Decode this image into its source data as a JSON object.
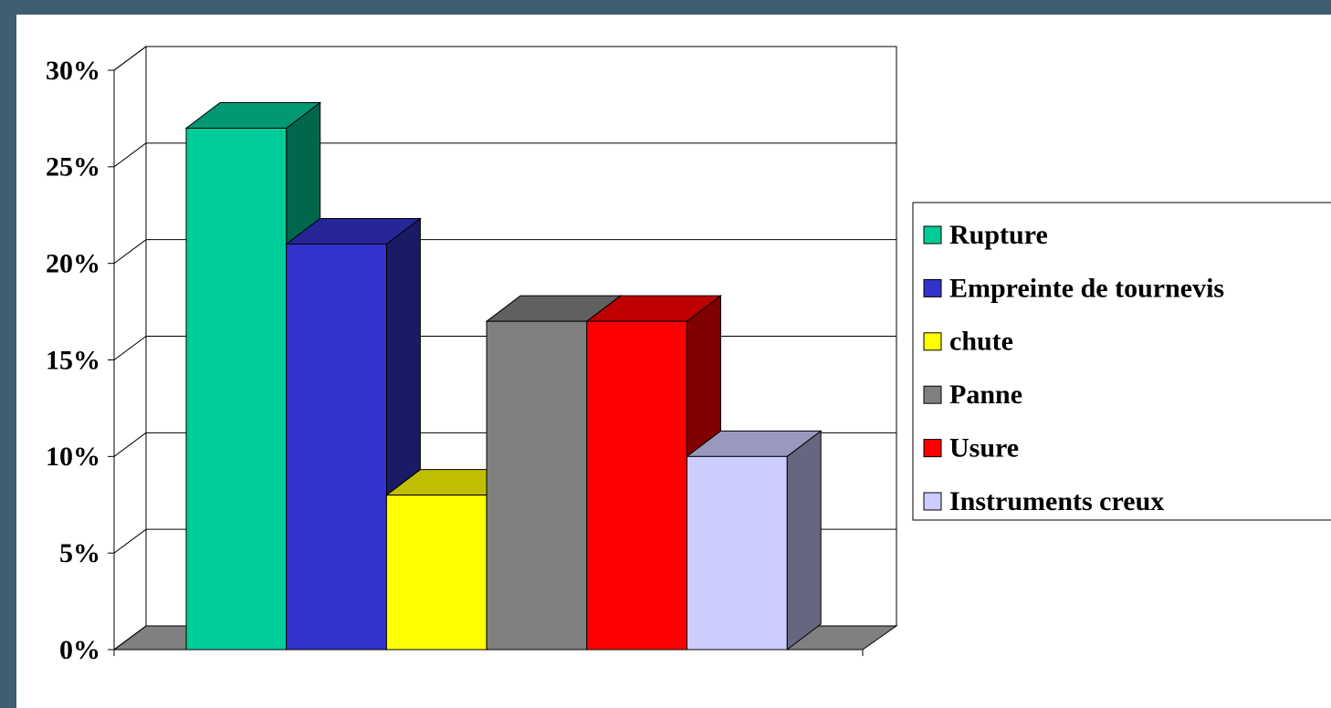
{
  "chart_data": {
    "type": "bar3d",
    "categories": [
      "Rupture",
      "Empreinte de tournevis",
      "chute",
      "Panne",
      "Usure",
      "Instruments creux"
    ],
    "values": [
      27,
      21,
      8,
      17,
      17,
      10
    ],
    "colors": [
      "#00cc99",
      "#3333cc",
      "#ffff00",
      "#808080",
      "#ff0000",
      "#ccccff"
    ],
    "ylim": [
      0,
      30
    ],
    "yticks": [
      {
        "value": 0,
        "label": "0%"
      },
      {
        "value": 5,
        "label": "5%"
      },
      {
        "value": 10,
        "label": "10%"
      },
      {
        "value": 15,
        "label": "15%"
      },
      {
        "value": 20,
        "label": "20%"
      },
      {
        "value": 25,
        "label": "25%"
      },
      {
        "value": 30,
        "label": "30%"
      }
    ],
    "grid": true,
    "legend": "right"
  }
}
